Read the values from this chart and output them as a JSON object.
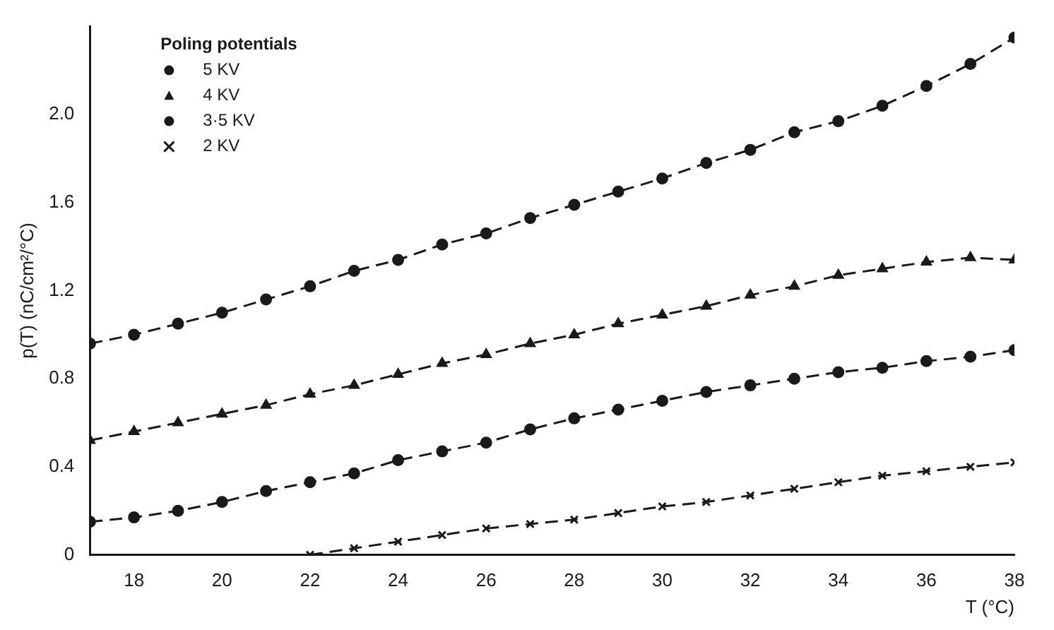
{
  "chart_data": {
    "type": "line",
    "xlabel": "T (°C)",
    "ylabel": "p(T) (nC/cm²/°C)",
    "legend_title": "Poling potentials",
    "legend": "top left",
    "grid": false,
    "line_style": "dashed",
    "x": [
      17,
      18,
      19,
      20,
      21,
      22,
      23,
      24,
      25,
      26,
      27,
      28,
      29,
      30,
      31,
      32,
      33,
      34,
      35,
      36,
      37,
      38
    ],
    "xlim": [
      17,
      38
    ],
    "xticks": [
      18,
      20,
      22,
      24,
      26,
      28,
      30,
      32,
      34,
      36,
      38
    ],
    "ylim": [
      0,
      2.4
    ],
    "yticks": [
      0,
      0.4,
      0.8,
      1.2,
      1.6,
      {
        "value": 2.0,
        "label": "2.0"
      }
    ],
    "series": [
      {
        "name": "5 KV",
        "color": "#1a1a1a",
        "marker": "circle",
        "values": [
          0.96,
          1.0,
          1.05,
          1.1,
          1.16,
          1.22,
          1.29,
          1.34,
          1.41,
          1.46,
          1.53,
          1.59,
          1.65,
          1.71,
          1.78,
          1.84,
          1.92,
          1.97,
          2.04,
          2.13,
          2.23,
          2.35
        ]
      },
      {
        "name": "4 KV",
        "color": "#1a1a1a",
        "marker": "triangle",
        "values": [
          0.52,
          0.56,
          0.6,
          0.64,
          0.68,
          0.73,
          0.77,
          0.82,
          0.87,
          0.91,
          0.96,
          1.0,
          1.05,
          1.09,
          1.13,
          1.18,
          1.22,
          1.27,
          1.3,
          1.33,
          1.35,
          1.34
        ]
      },
      {
        "name": "3·5 KV",
        "color": "#1a1a1a",
        "marker": "circle",
        "values": [
          0.15,
          0.17,
          0.2,
          0.24,
          0.29,
          0.33,
          0.37,
          0.43,
          0.47,
          0.51,
          0.57,
          0.62,
          0.66,
          0.7,
          0.74,
          0.77,
          0.8,
          0.83,
          0.85,
          0.88,
          0.9,
          0.93
        ]
      },
      {
        "name": "2 KV",
        "color": "#1a1a1a",
        "marker": "cross",
        "values": [
          null,
          null,
          null,
          null,
          null,
          0.0,
          0.03,
          0.06,
          0.09,
          0.12,
          0.14,
          0.16,
          0.19,
          0.22,
          0.24,
          0.27,
          0.3,
          0.33,
          0.36,
          0.38,
          0.4,
          0.42
        ]
      }
    ]
  }
}
